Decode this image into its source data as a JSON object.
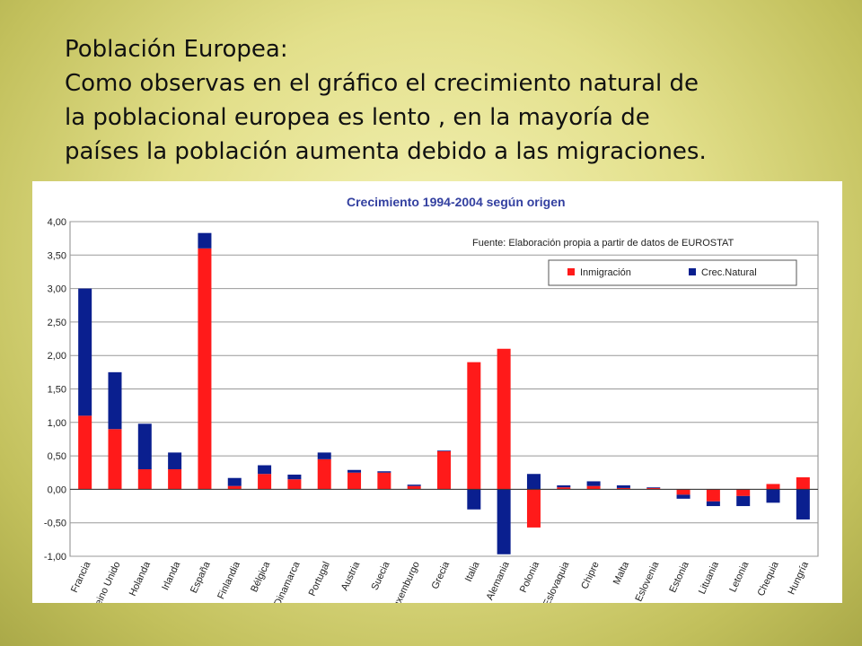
{
  "slide": {
    "heading": "Población Europea:",
    "lines": [
      "Como observas en el gráfico el crecimiento natural de",
      "la  poblacional europea es lento , en la mayoría de",
      "países la población aumenta debido a las migraciones."
    ]
  },
  "chart_data": {
    "type": "bar",
    "stacked": true,
    "title": "Crecimiento 1994-2004 según origen",
    "source_note": "Fuente: Elaboración propia a partir de datos de EUROSTAT",
    "ylim": [
      -1.0,
      4.0
    ],
    "yticks": [
      "-1,00",
      "-0,50",
      "0,00",
      "0,50",
      "1,00",
      "1,50",
      "2,00",
      "2,50",
      "3,00",
      "3,50",
      "4,00"
    ],
    "ytick_values": [
      -1.0,
      -0.5,
      0.0,
      0.5,
      1.0,
      1.5,
      2.0,
      2.5,
      3.0,
      3.5,
      4.0
    ],
    "grid": true,
    "legend_position": "top-right",
    "categories": [
      "Francia",
      "Reino Unido",
      "Holanda",
      "Irlanda",
      "España",
      "Finlandia",
      "Bélgica",
      "Dinamarca",
      "Portugal",
      "Austria",
      "Suecia",
      "Luxemburgo",
      "Grecia",
      "Italia",
      "Alemania",
      "Polonia",
      "Eslovaquia",
      "Chipre",
      "Malta",
      "Eslovenia",
      "Estonia",
      "Lituania",
      "Letonia",
      "Chequia",
      "Hungría"
    ],
    "series": [
      {
        "name": "Inmigración",
        "color": "#ff1a1a",
        "values": [
          1.1,
          0.9,
          0.3,
          0.3,
          3.6,
          0.05,
          0.23,
          0.15,
          0.45,
          0.25,
          0.25,
          0.05,
          0.57,
          1.9,
          2.1,
          -0.57,
          0.03,
          0.05,
          0.02,
          0.02,
          -0.08,
          -0.18,
          -0.1,
          0.08,
          0.18
        ]
      },
      {
        "name": "Crec.Natural",
        "color": "#0a1f8f",
        "values": [
          1.9,
          0.85,
          0.68,
          0.25,
          0.23,
          0.12,
          0.13,
          0.07,
          0.1,
          0.04,
          0.02,
          0.02,
          0.01,
          -0.3,
          -0.97,
          0.23,
          0.03,
          0.07,
          0.04,
          0.01,
          -0.06,
          -0.07,
          -0.15,
          -0.2,
          -0.45
        ]
      }
    ]
  }
}
